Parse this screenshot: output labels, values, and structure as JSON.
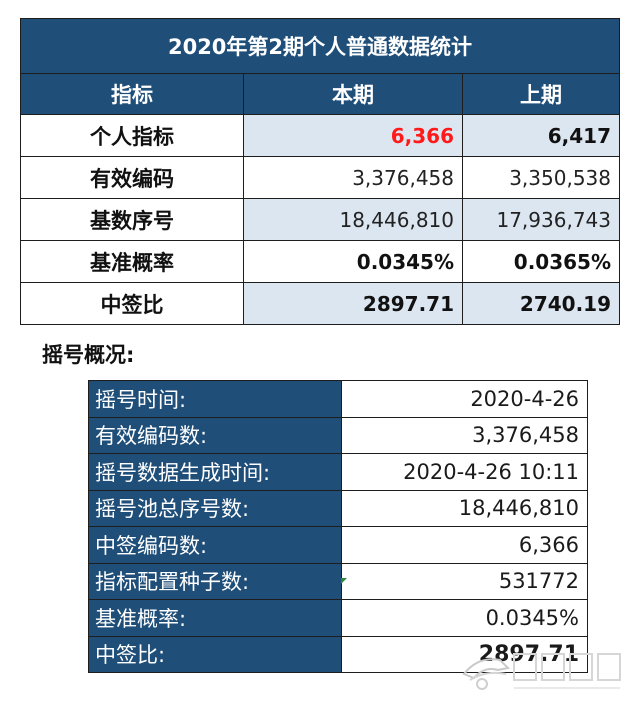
{
  "stats_table": {
    "title": "2020年第2期个人普通数据统计",
    "headers": [
      "指标",
      "本期",
      "上期"
    ],
    "rows": [
      {
        "label": "个人指标",
        "current": "6,366",
        "previous": "6,417"
      },
      {
        "label": "有效编码",
        "current": "3,376,458",
        "previous": "3,350,538"
      },
      {
        "label": "基数序号",
        "current": "18,446,810",
        "previous": "17,936,743"
      },
      {
        "label": "基准概率",
        "current": "0.0345%",
        "previous": "0.0365%"
      },
      {
        "label": "中签比",
        "current": "2897.71",
        "previous": "2740.19"
      }
    ]
  },
  "section_title": "摇号概况:",
  "summary_table": {
    "rows": [
      {
        "label": "摇号时间:",
        "value": "2020-4-26"
      },
      {
        "label": "有效编码数:",
        "value": "3,376,458"
      },
      {
        "label": "摇号数据生成时间:",
        "value": "2020-4-26 10:11"
      },
      {
        "label": "摇号池总序号数:",
        "value": "18,446,810"
      },
      {
        "label": "中签编码数:",
        "value": "6,366"
      },
      {
        "label": "指标配置种子数:",
        "value": "531772"
      },
      {
        "label": "基准概率:",
        "value": "0.0345%"
      },
      {
        "label": "中签比:",
        "value": "2897.71"
      }
    ]
  },
  "colors": {
    "header_bg": "#1f4e79",
    "value_bg": "#dce6f1",
    "highlight_red": "#ff1a1a"
  },
  "watermark": {
    "icon": "car-logo-icon"
  }
}
